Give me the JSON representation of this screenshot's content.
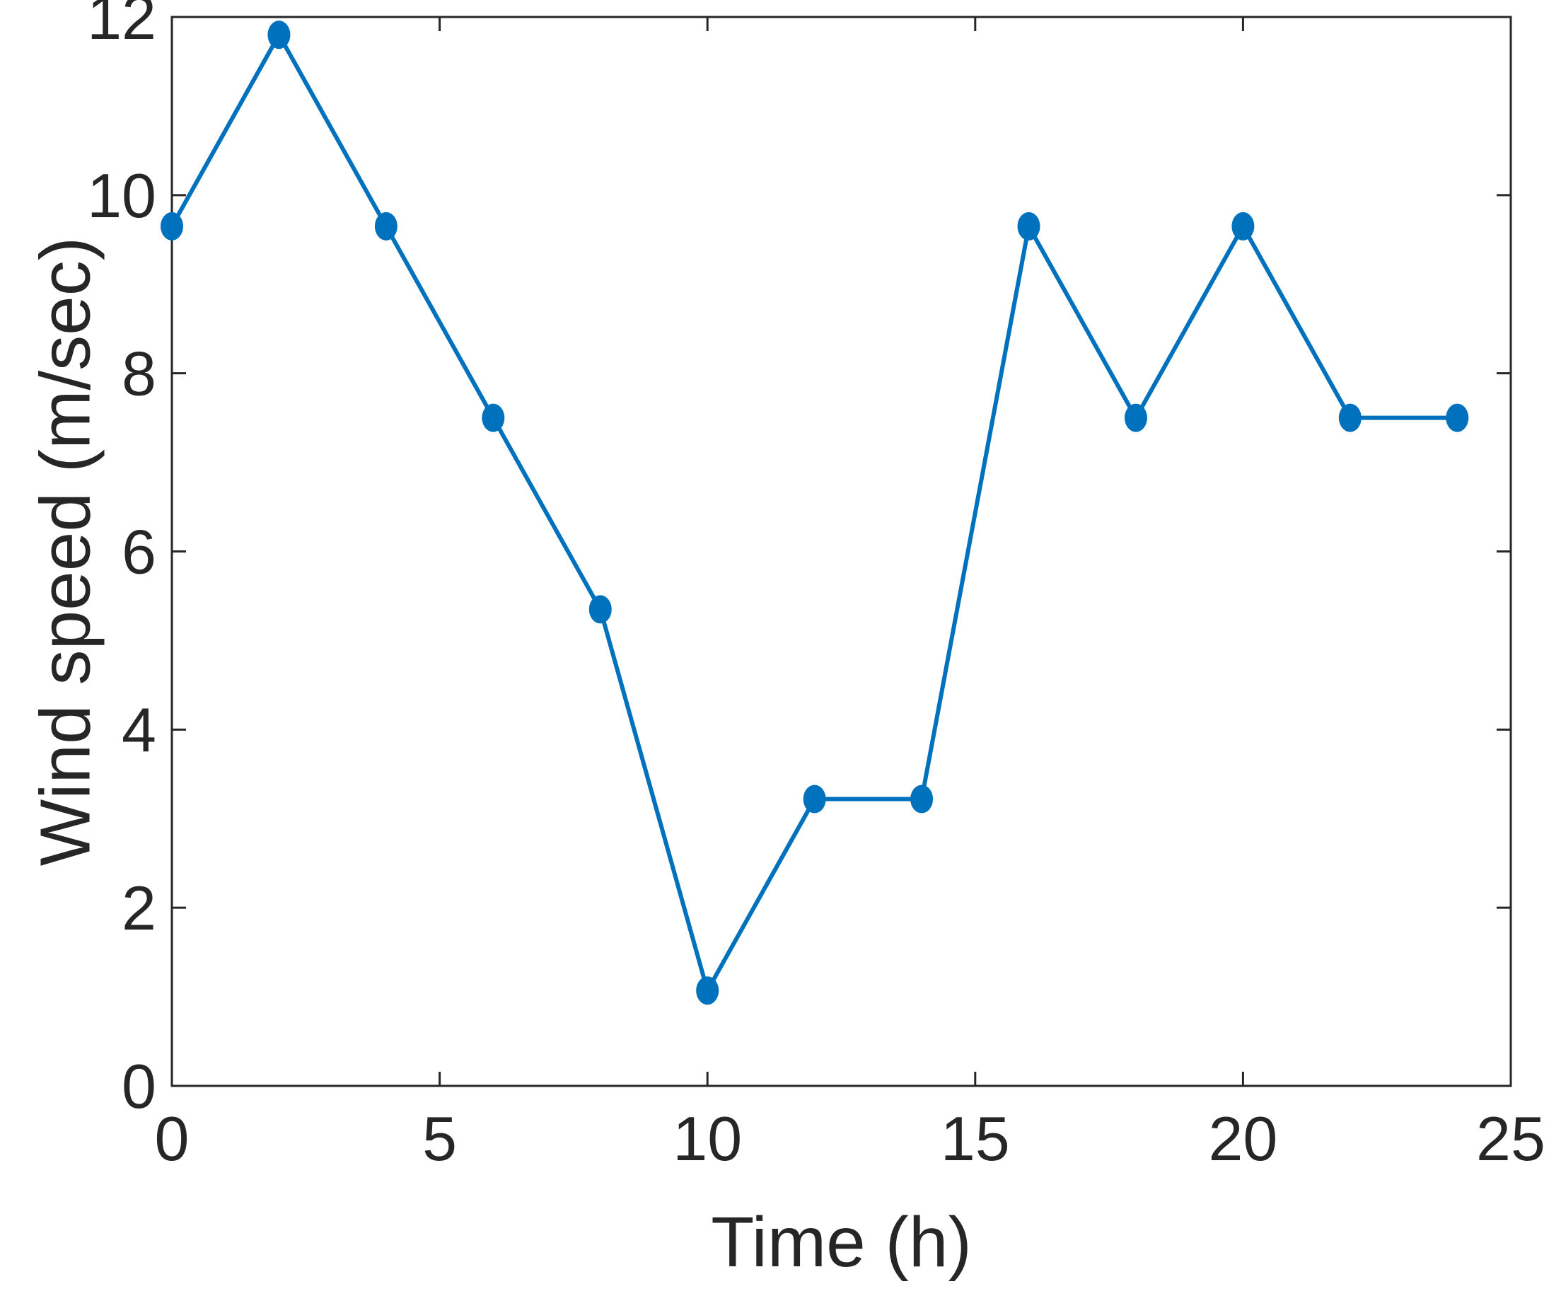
{
  "chart_data": {
    "type": "line",
    "xlabel": "Time (h)",
    "ylabel": "Wind speed (m/sec)",
    "xlim": [
      0,
      25
    ],
    "ylim": [
      0,
      12
    ],
    "xticks": [
      0,
      5,
      10,
      15,
      20,
      25
    ],
    "yticks": [
      0,
      2,
      4,
      6,
      8,
      10,
      12
    ],
    "grid": false,
    "box": true,
    "series": [
      {
        "marker": "circle",
        "color": "#0072BD",
        "x": [
          0,
          2,
          4,
          6,
          8,
          10,
          12,
          14,
          16,
          18,
          20,
          22,
          24
        ],
        "y": [
          9.65,
          11.8,
          9.65,
          7.5,
          5.35,
          1.07,
          3.22,
          3.22,
          9.65,
          7.5,
          9.65,
          7.5,
          7.5
        ]
      }
    ]
  }
}
